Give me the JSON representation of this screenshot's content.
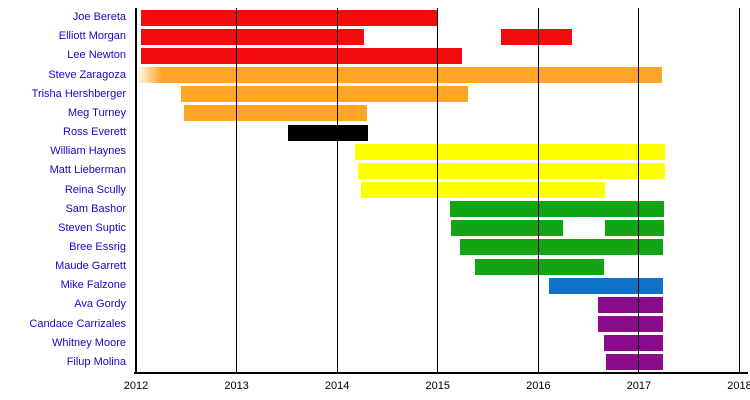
{
  "chart_data": {
    "type": "timeline-gantt",
    "title": "",
    "xlabel": "",
    "ylabel": "",
    "grid": true,
    "legend": "none",
    "x_axis": {
      "range": [
        2012,
        2018
      ],
      "ticks": [
        2012,
        2013,
        2014,
        2015,
        2016,
        2017,
        2018
      ]
    },
    "palette": {
      "red": "#f20c0c",
      "orange": "#ffa425",
      "black": "#000000",
      "yellow": "#ffff00",
      "green": "#12a412",
      "blue": "#0d72c8",
      "purple": "#8a0c8a"
    },
    "styles": {
      "row_label_color": "#2200cc",
      "tick_label_color": "#000000",
      "axis_color": "#000000",
      "gridline_color": "#000000",
      "background": "#ffffff"
    },
    "rows": [
      {
        "name": "Joe Bereta",
        "color": "red",
        "segments": [
          {
            "start": 2012.05,
            "end": 2015.0
          }
        ]
      },
      {
        "name": "Elliott Morgan",
        "color": "red",
        "segments": [
          {
            "start": 2012.05,
            "end": 2014.27
          },
          {
            "start": 2015.63,
            "end": 2016.33
          }
        ]
      },
      {
        "name": "Lee Newton",
        "color": "red",
        "segments": [
          {
            "start": 2012.05,
            "end": 2015.24
          }
        ]
      },
      {
        "name": "Steve Zaragoza",
        "color": "orange",
        "segments": [
          {
            "start": 2012.0,
            "end": 2017.23,
            "fade_left": true
          }
        ]
      },
      {
        "name": "Trisha Hershberger",
        "color": "orange",
        "segments": [
          {
            "start": 2012.45,
            "end": 2015.3
          }
        ]
      },
      {
        "name": "Meg Turney",
        "color": "orange",
        "segments": [
          {
            "start": 2012.48,
            "end": 2014.3
          }
        ]
      },
      {
        "name": "Ross Everett",
        "color": "black",
        "segments": [
          {
            "start": 2013.51,
            "end": 2014.31
          }
        ]
      },
      {
        "name": "William Haynes",
        "color": "yellow",
        "segments": [
          {
            "start": 2014.18,
            "end": 2017.26
          }
        ]
      },
      {
        "name": "Matt Lieberman",
        "color": "yellow",
        "segments": [
          {
            "start": 2014.21,
            "end": 2017.26
          }
        ]
      },
      {
        "name": "Reina Scully",
        "color": "yellow",
        "segments": [
          {
            "start": 2014.24,
            "end": 2016.66
          }
        ]
      },
      {
        "name": "Sam Bashor",
        "color": "green",
        "segments": [
          {
            "start": 2015.12,
            "end": 2017.25
          }
        ]
      },
      {
        "name": "Steven Suptic",
        "color": "green",
        "segments": [
          {
            "start": 2015.13,
            "end": 2016.25
          },
          {
            "start": 2016.66,
            "end": 2017.25
          }
        ]
      },
      {
        "name": "Bree Essrig",
        "color": "green",
        "segments": [
          {
            "start": 2015.22,
            "end": 2017.24
          }
        ]
      },
      {
        "name": "Maude Garrett",
        "color": "green",
        "segments": [
          {
            "start": 2015.37,
            "end": 2016.65
          }
        ]
      },
      {
        "name": "Mike Falzone",
        "color": "blue",
        "segments": [
          {
            "start": 2016.11,
            "end": 2017.24
          }
        ]
      },
      {
        "name": "Ava Gordy",
        "color": "purple",
        "segments": [
          {
            "start": 2016.59,
            "end": 2017.24
          }
        ]
      },
      {
        "name": "Candace Carrizales",
        "color": "purple",
        "segments": [
          {
            "start": 2016.59,
            "end": 2017.24
          }
        ]
      },
      {
        "name": "Whitney Moore",
        "color": "purple",
        "segments": [
          {
            "start": 2016.65,
            "end": 2017.24
          }
        ]
      },
      {
        "name": "Filup Molina",
        "color": "purple",
        "segments": [
          {
            "start": 2016.67,
            "end": 2017.24
          }
        ]
      }
    ]
  }
}
